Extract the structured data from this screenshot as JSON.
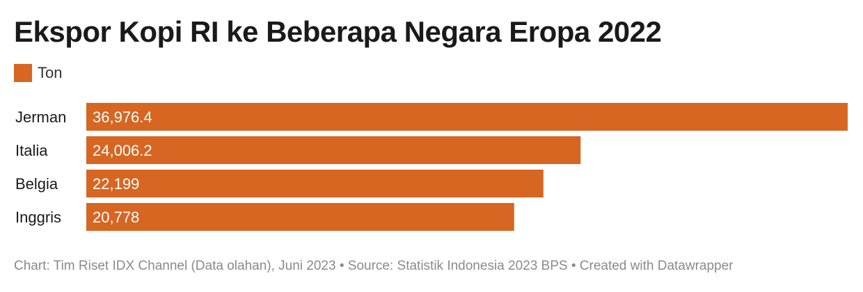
{
  "title": "Ekspor Kopi RI ke Beberapa Negara Eropa 2022",
  "legend": {
    "label": "Ton",
    "color": "#d66622"
  },
  "footer": "Chart: Tim Riset IDX Channel (Data olahan), Juni 2023 • Source: Statistik Indonesia 2023 BPS • Created with Datawrapper",
  "chart_data": {
    "type": "bar",
    "orientation": "horizontal",
    "title": "Ekspor Kopi RI ke Beberapa Negara Eropa 2022",
    "categories": [
      "Jerman",
      "Italia",
      "Belgia",
      "Inggris"
    ],
    "series": [
      {
        "name": "Ton",
        "values": [
          36976.4,
          24006.2,
          22199,
          20778
        ],
        "color": "#d66622"
      }
    ],
    "value_labels": [
      "36,976.4",
      "24,006.2",
      "22,199",
      "20,778"
    ],
    "xlim": [
      0,
      36976.4
    ],
    "grid": false,
    "legend": "top-left"
  }
}
